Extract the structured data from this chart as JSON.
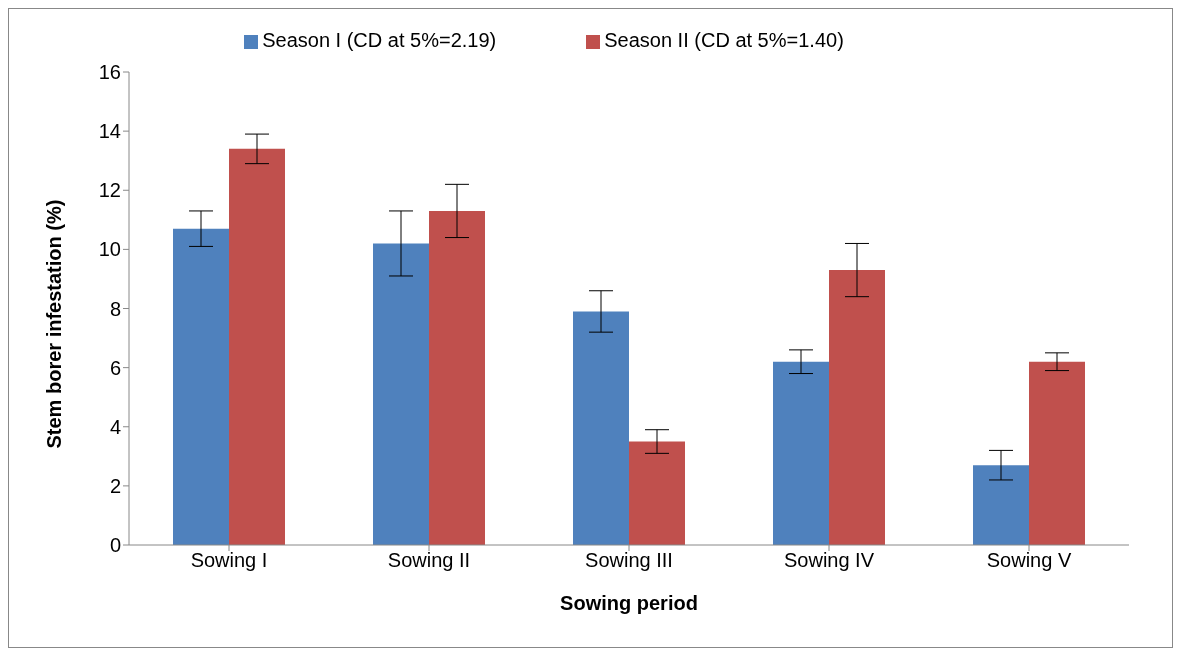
{
  "chart_data": {
    "type": "bar",
    "xlabel": "Sowing period",
    "ylabel": "Stem borer infestation (%)",
    "categories": [
      "Sowing I",
      "Sowing II",
      "Sowing III",
      "Sowing IV",
      "Sowing V"
    ],
    "series": [
      {
        "name": "Season I (CD at 5%=2.19)",
        "color": "#4f81bd",
        "values": [
          10.7,
          10.2,
          7.9,
          6.2,
          2.7
        ],
        "errors": [
          0.6,
          1.1,
          0.7,
          0.4,
          0.5
        ]
      },
      {
        "name": "Season II (CD at 5%=1.40)",
        "color": "#c0504d",
        "values": [
          13.4,
          11.3,
          3.5,
          9.3,
          6.2
        ],
        "errors": [
          0.5,
          0.9,
          0.4,
          0.9,
          0.3
        ]
      }
    ],
    "ylim": [
      0,
      16
    ],
    "yticks": [
      0,
      2,
      4,
      6,
      8,
      10,
      12,
      14,
      16
    ],
    "grid": false,
    "legend": "top"
  }
}
